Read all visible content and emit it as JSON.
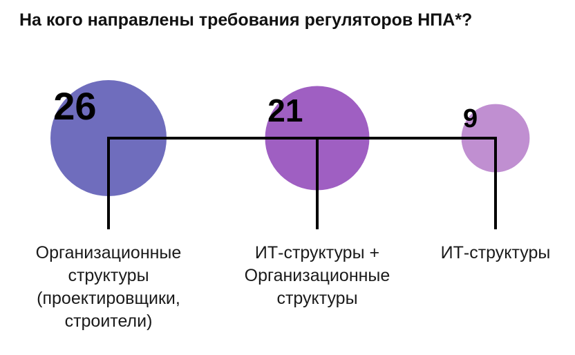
{
  "title": "На кого направлены требования регуляторов НПА*?",
  "chart_data": {
    "type": "bubble",
    "title": "На кого направлены требования регуляторов НПА*?",
    "categories": [
      "Организационные структуры (проектировщики, строители)",
      "ИТ-структуры + Организационные структуры",
      "ИТ-структуры"
    ],
    "category_lines": [
      [
        "Организационные",
        "структуры",
        "(проектировщики,",
        "строители)"
      ],
      [
        "ИТ-структуры +",
        "Организационные",
        "структуры"
      ],
      [
        "ИТ-структуры"
      ]
    ],
    "values": [
      26,
      21,
      9
    ],
    "colors": [
      "#6f6dbd",
      "#9f5fc2",
      "#c08fd1"
    ]
  }
}
